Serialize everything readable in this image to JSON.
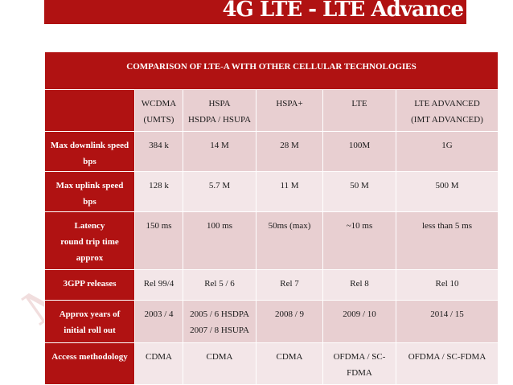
{
  "slide_title": "4G LTE - LTE Advance",
  "table": {
    "caption": "COMPARISON OF LTE-A WITH OTHER CELLULAR TECHNOLOGIES",
    "headers": [
      "WCDMA\n(UMTS)",
      "HSPA\nHSDPA / HSUPA",
      "HSPA+",
      "LTE",
      "LTE ADVANCED\n(IMT ADVANCED)"
    ],
    "rows": [
      {
        "label": "Max downlink speed\nbps",
        "values": [
          "384 k",
          "14 M",
          "28 M",
          "100M",
          "1G"
        ]
      },
      {
        "label": "Max uplink speed\nbps",
        "values": [
          "128 k",
          "5.7 M",
          "11 M",
          "50 M",
          "500 M"
        ]
      },
      {
        "label": "Latency\nround trip time\napprox",
        "values": [
          "150 ms",
          "100 ms",
          "50ms (max)",
          "~10 ms",
          "less than 5 ms"
        ]
      },
      {
        "label": "3GPP releases",
        "values": [
          "Rel 99/4",
          "Rel 5 / 6",
          "Rel 7",
          "Rel 8",
          "Rel 10"
        ]
      },
      {
        "label": "Approx years of\ninitial roll out",
        "values": [
          "2003 / 4",
          "2005 / 6 HSDPA\n2007 / 8 HSUPA",
          "2008 / 9",
          "2009 / 10",
          "2014 / 15"
        ]
      },
      {
        "label": "Access methodology",
        "values": [
          "CDMA",
          "CDMA",
          "CDMA",
          "OFDMA / SC-\nFDMA",
          "OFDMA / SC-FDMA"
        ]
      }
    ]
  },
  "watermark_text": "M",
  "colors": {
    "brand_red": "#b01212",
    "cell_dark": "#e8cfd1",
    "cell_light": "#f3e6e8"
  }
}
